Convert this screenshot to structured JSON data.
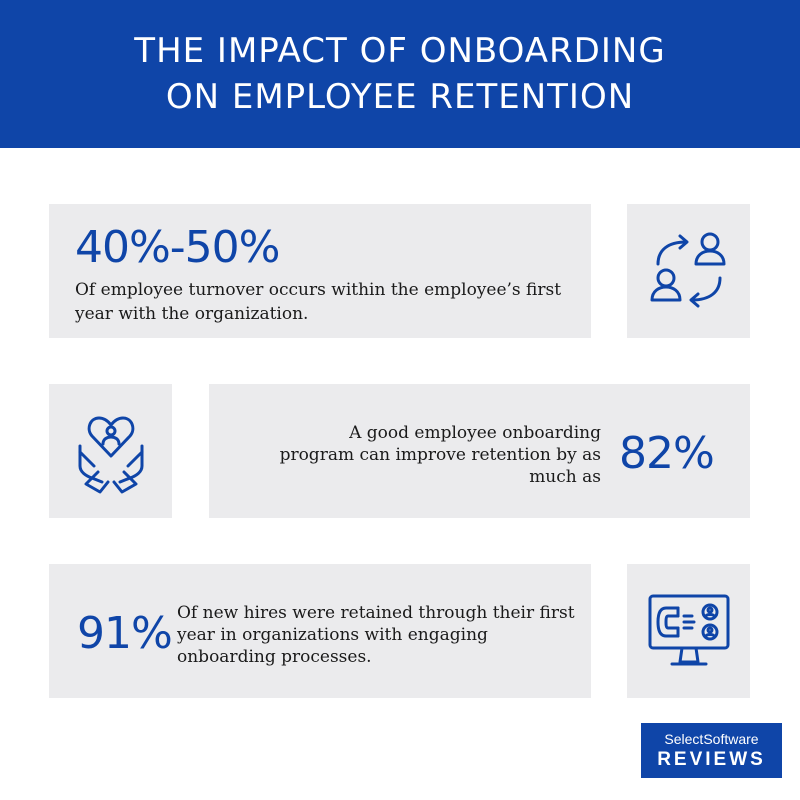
{
  "header": {
    "title_line1": "THE IMPACT OF ONBOARDING",
    "title_line2": "ON EMPLOYEE RETENTION"
  },
  "stats": [
    {
      "value": "40%-50%",
      "description": "Of employee turnover occurs within the employee’s first year with the organization.",
      "icon": "people-exchange-icon"
    },
    {
      "value": "82%",
      "description": "A good employee onboarding program can improve retention by as much as",
      "icon": "hands-heart-person-icon"
    },
    {
      "value": "91%",
      "description": "Of new hires were retained through their first year in organizations with engaging onboarding processes.",
      "icon": "monitor-magnet-users-icon"
    }
  ],
  "logo": {
    "line1": "SelectSoftware",
    "line2": "REVIEWS"
  },
  "colors": {
    "brand_blue": "#0f45a8",
    "box_gray": "#ebebed"
  }
}
